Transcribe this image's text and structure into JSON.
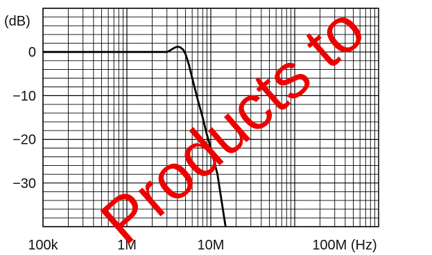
{
  "chart_data": {
    "type": "line",
    "x_scale": "log",
    "xlim": [
      100000,
      1000000000
    ],
    "ylim": [
      -40,
      10
    ],
    "x_ticks": [
      {
        "value": 100000,
        "label": "100k"
      },
      {
        "value": 1000000,
        "label": "1M"
      },
      {
        "value": 10000000,
        "label": "10M"
      },
      {
        "value": 100000000,
        "label": "100M (Hz)"
      }
    ],
    "y_ticks": [
      {
        "value": 0,
        "label": "0"
      },
      {
        "value": -10,
        "label": "−10"
      },
      {
        "value": -20,
        "label": "−20"
      },
      {
        "value": -30,
        "label": "−30"
      }
    ],
    "y_unit_label": "(dB)",
    "grid": true,
    "grid_minor_y_step": 2,
    "series": [
      {
        "color": "#000000",
        "points": [
          [
            100000,
            0
          ],
          [
            3000000,
            0
          ],
          [
            3300000,
            0.4
          ],
          [
            3700000,
            1.0
          ],
          [
            4000000,
            1.2
          ],
          [
            4300000,
            1.1
          ],
          [
            4700000,
            0.5
          ],
          [
            5000000,
            -0.5
          ],
          [
            5500000,
            -3
          ],
          [
            6000000,
            -6
          ],
          [
            7000000,
            -11
          ],
          [
            8000000,
            -15
          ],
          [
            9000000,
            -19
          ],
          [
            10000000,
            -22
          ],
          [
            12000000,
            -28
          ],
          [
            15000000,
            -40
          ]
        ]
      }
    ]
  },
  "watermark": {
    "text": "Products to",
    "color": "#ee0000"
  }
}
